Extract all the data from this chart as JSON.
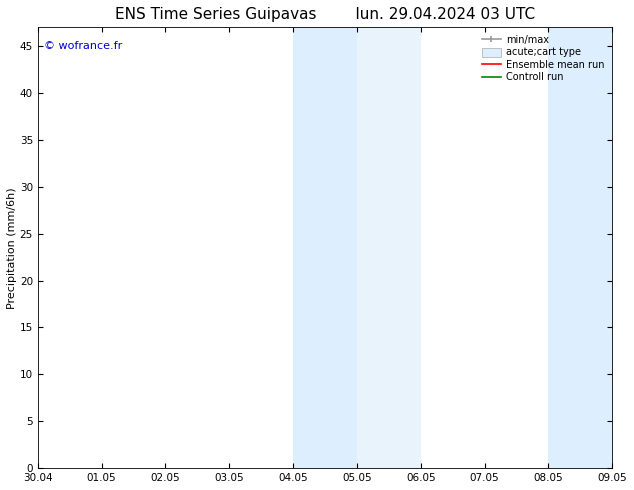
{
  "title_left": "ENS Time Series Guipavas",
  "title_right": "lun. 29.04.2024 03 UTC",
  "ylabel": "Precipitation (mm/6h)",
  "watermark": "© wofrance.fr",
  "watermark_color": "#0000cc",
  "xlabel_ticks": [
    "30.04",
    "01.05",
    "02.05",
    "03.05",
    "04.05",
    "05.05",
    "06.05",
    "07.05",
    "08.05",
    "09.05"
  ],
  "xlim": [
    0,
    9
  ],
  "ylim": [
    0,
    47
  ],
  "yticks": [
    0,
    5,
    10,
    15,
    20,
    25,
    30,
    35,
    40,
    45
  ],
  "shaded_regions": [
    {
      "xmin": 4.0,
      "xmax": 5.0,
      "color": "#ddeeff"
    },
    {
      "xmin": 5.0,
      "xmax": 6.0,
      "color": "#e8f3fb"
    },
    {
      "xmin": 8.0,
      "xmax": 9.0,
      "color": "#ddeeff"
    }
  ],
  "bg_color": "#ffffff",
  "legend_entries": [
    {
      "label": "min/max",
      "color": "#999999",
      "lw": 1.2
    },
    {
      "label": "acute;cart type",
      "facecolor": "#ddeeff",
      "edgecolor": "#aaaaaa"
    },
    {
      "label": "Ensemble mean run",
      "color": "#ff0000",
      "lw": 1.2
    },
    {
      "label": "Controll run",
      "color": "#008800",
      "lw": 1.2
    }
  ],
  "title_fontsize": 11,
  "tick_fontsize": 7.5,
  "ylabel_fontsize": 8,
  "watermark_fontsize": 8
}
